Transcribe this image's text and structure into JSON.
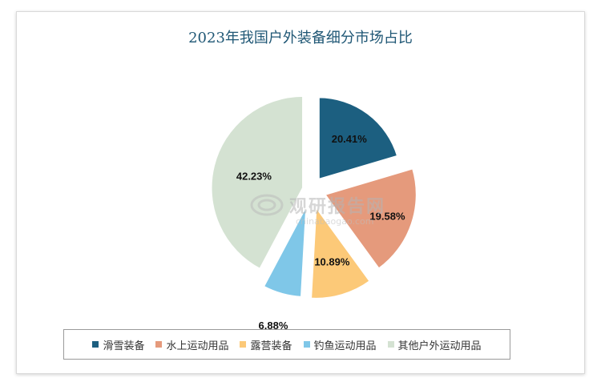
{
  "chart_data": {
    "type": "pie",
    "title": "2023年我国户外装备细分市场占比",
    "slices": [
      {
        "label": "滑雪装备",
        "value": 20.41,
        "display": "20.41%",
        "color": "#1c5f80"
      },
      {
        "label": "水上运动用品",
        "value": 19.58,
        "display": "19.58%",
        "color": "#e59a7c"
      },
      {
        "label": "露营装备",
        "value": 10.89,
        "display": "10.89%",
        "color": "#fcc978"
      },
      {
        "label": "钓鱼运动用品",
        "value": 6.88,
        "display": "6.88%",
        "color": "#7fc7e8"
      },
      {
        "label": "其他户外运动用品",
        "value": 42.23,
        "display": "42.23%",
        "color": "#d4e2d2"
      }
    ],
    "legend_position": "bottom"
  },
  "watermark": {
    "name": "观研报告网",
    "url": "chinabaogao.com"
  }
}
